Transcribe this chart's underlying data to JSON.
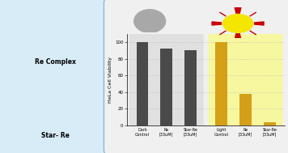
{
  "dark_labels": [
    "Dark\nControl",
    "Re\n[33uM]",
    "Star-Re\n[33uM]"
  ],
  "dark_values": [
    100,
    92,
    90
  ],
  "dark_bar_color": "#4a4a4a",
  "dark_bg_color": "#e0e0e0",
  "light_labels": [
    "Light\nControl",
    "Re\n[33uM]",
    "Star-Re\n[33uM]"
  ],
  "light_values": [
    100,
    38,
    4
  ],
  "light_bar_color": "#D4A017",
  "light_bg_color": "#f7f7a0",
  "ylabel": "HeLa Cell Viability",
  "ylim": [
    0,
    110
  ],
  "yticks": [
    0,
    20,
    40,
    60,
    80,
    100
  ],
  "dark_circle_color": "#a8a8a8",
  "sun_yellow": "#f5e600",
  "sun_ray_color": "#cc0000",
  "outer_bg": "#c8dff0",
  "left_panel_bg": "#d8ecf8",
  "left_border_color": "#8ab8d0",
  "chart_outer_bg": "#ffffff",
  "grid_color": "#bbbbbb",
  "bar_width": 0.5,
  "re_complex_label": "Re Complex",
  "star_re_label": "Star- Re"
}
